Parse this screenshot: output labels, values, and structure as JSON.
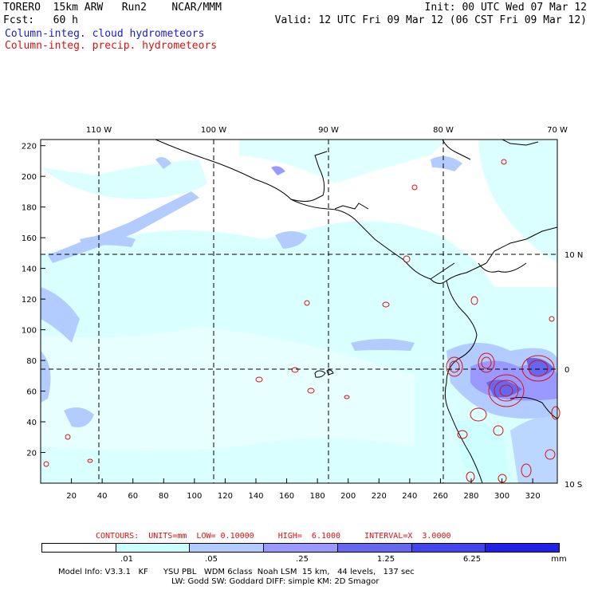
{
  "header": {
    "model": "TORERO  15km ARW   Run2    NCAR/MMM",
    "fcst": "Fcst:   60 h",
    "init": "Init: 00 UTC Wed 07 Mar 12",
    "valid": "Valid: 12 UTC Fri 09 Mar 12 (06 CST Fri 09 Mar 12)",
    "field_cloud": "Column-integ. cloud hydrometeors",
    "field_precip": "Column-integ. precip. hydrometeors"
  },
  "axes": {
    "x_ticks": [
      "20",
      "40",
      "60",
      "80",
      "100",
      "120",
      "140",
      "160",
      "180",
      "200",
      "220",
      "240",
      "260",
      "280",
      "300",
      "320"
    ],
    "y_ticks": [
      "20",
      "40",
      "60",
      "80",
      "100",
      "120",
      "140",
      "160",
      "180",
      "200",
      "220"
    ],
    "lon_labels": [
      "110 W",
      "100 W",
      "90 W",
      "80 W",
      "70 W"
    ],
    "lat_labels": [
      "10 N",
      "0",
      "10 S"
    ]
  },
  "contour_info": {
    "label": "CONTOURS:  UNITS=mm  LOW= 0.10000     HIGH=  6.1000     INTERVAL=X  3.0000"
  },
  "colorbar": {
    "labels": [
      ".01",
      ".05",
      ".25",
      "1.25",
      "6.25"
    ],
    "unit": "mm",
    "colors": [
      "#ffffff",
      "#ccffff",
      "#b3ccff",
      "#9999ff",
      "#6666ee",
      "#4444ee",
      "#2020e6"
    ]
  },
  "footer": {
    "line1": "Model Info: V3.3.1   KF      YSU PBL   WDM 6class  Noah LSM  15 km,   44 levels,   137 sec",
    "line2": "LW: Godd SW: Goddard DIFF: simple KM: 2D Smagor"
  }
}
